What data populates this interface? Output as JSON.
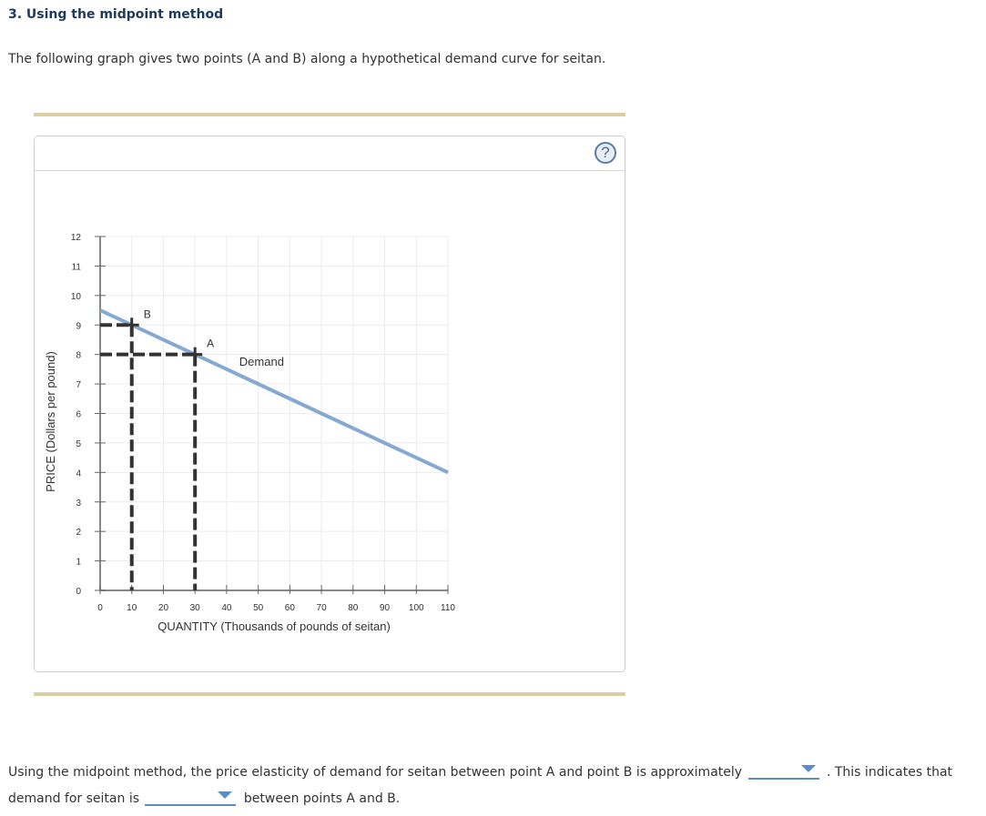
{
  "question": {
    "number_title": "3. Using the midpoint method",
    "intro": "The following graph gives two points (A and B) along a hypothetical demand curve for seitan."
  },
  "panel": {
    "help_label": "?"
  },
  "chart_data": {
    "type": "line",
    "title": "",
    "xlabel": "QUANTITY (Thousands of pounds of seitan)",
    "ylabel": "PRICE (Dollars per pound)",
    "xlim": [
      0,
      110
    ],
    "ylim": [
      0,
      12
    ],
    "x_ticks": [
      0,
      10,
      20,
      30,
      40,
      50,
      60,
      70,
      80,
      90,
      100,
      110
    ],
    "y_ticks": [
      0,
      1,
      2,
      3,
      4,
      5,
      6,
      7,
      8,
      9,
      10,
      11,
      12
    ],
    "grid": true,
    "series": [
      {
        "name": "Demand",
        "color": "#86a9d2",
        "x": [
          0,
          110
        ],
        "y": [
          9.5,
          4
        ]
      }
    ],
    "points": [
      {
        "label": "B",
        "x": 10,
        "y": 9
      },
      {
        "label": "A",
        "x": 30,
        "y": 8
      }
    ],
    "annotations": [
      {
        "text": "Demand",
        "x": 44,
        "y": 7.8
      }
    ],
    "guide_line_color": "#333333"
  },
  "answer": {
    "line1_before": "Using the midpoint method, the price elasticity of demand for seitan between point A and point B is approximately",
    "line1_after": ". This indicates that",
    "line2_before": "demand for seitan is",
    "line2_after": "between points A and B.",
    "dropdown1_value": "",
    "dropdown2_value": ""
  },
  "colors": {
    "title": "#1f3a5f",
    "rule": "#d9cfa3",
    "dropdown": "#5b8ec4"
  }
}
